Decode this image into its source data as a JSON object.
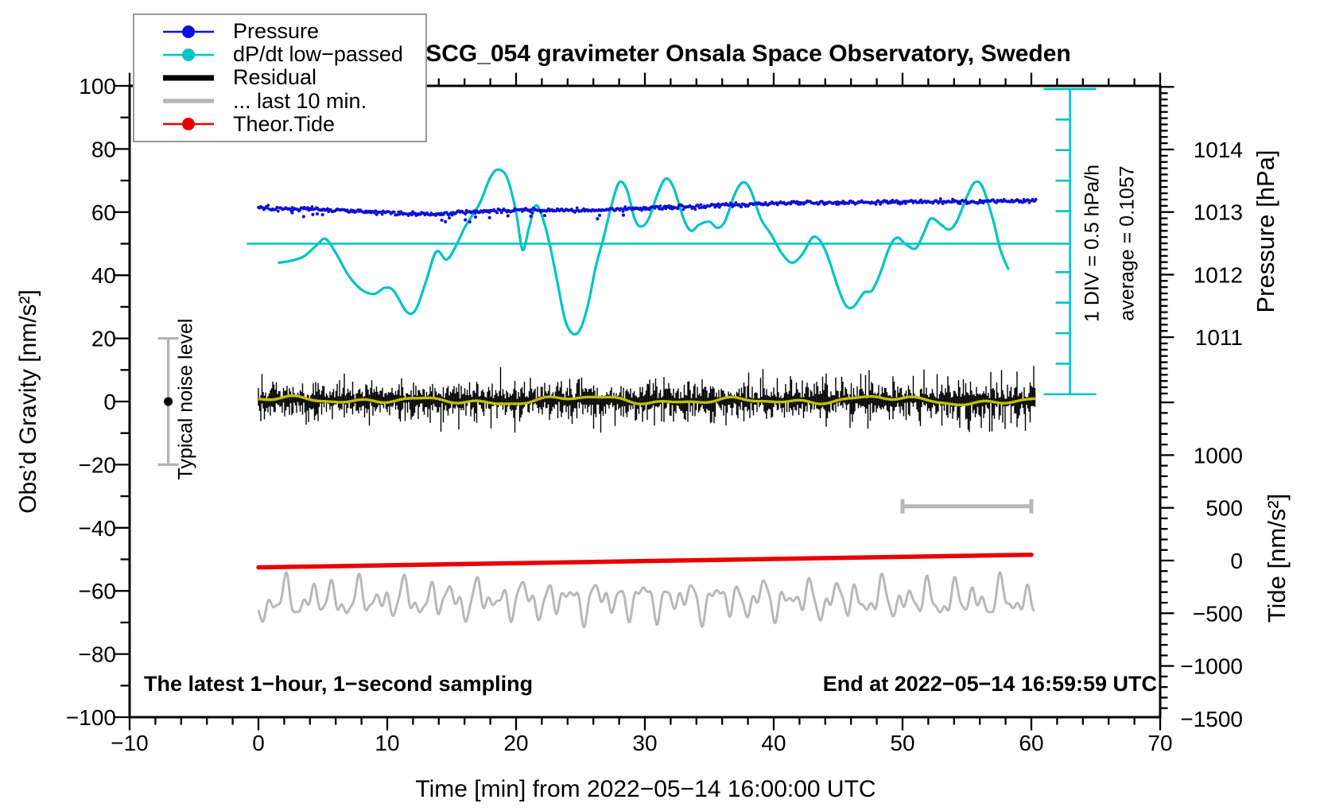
{
  "title": "SCG_054 gravimeter Onsala Space Observatory, Sweden",
  "annotations": {
    "sampling_note": "The latest 1−hour, 1−second sampling",
    "end_note": "End at 2022−05−14 16:59:59 UTC",
    "div_note": "1 DIV = 0.5 hPa/h",
    "average_note": "average = 0.1057",
    "noise_label": "Typical noise level"
  },
  "axes": {
    "x": {
      "label": "Time [min] from 2022−05−14 16:00:00 UTC",
      "min": -10,
      "max": 70,
      "major_ticks": [
        -10,
        0,
        10,
        20,
        30,
        40,
        50,
        60,
        70
      ],
      "minor_step": 2
    },
    "y_left": {
      "label": "Obs’d Gravity [nm/s²]",
      "min": -100,
      "max": 100,
      "major_ticks": [
        100,
        80,
        60,
        40,
        20,
        0,
        -20,
        -40,
        -60,
        -80,
        -100
      ],
      "minor_step": 10
    },
    "y_pressure": {
      "label": "Pressure [hPa]",
      "labeled_ticks": [
        1014,
        1013,
        1012,
        1011
      ],
      "minor_step": 0.1,
      "top_value": 1015.0,
      "bottom_value": 1010.1
    },
    "y_tide": {
      "label": "Tide [nm/s²]",
      "labeled_ticks": [
        1000,
        500,
        0,
        -500,
        -1000,
        -1500
      ],
      "minor_step": 100,
      "top_value": 1500,
      "bottom_value": -1400
    }
  },
  "legend": {
    "items": [
      {
        "label": "Pressure",
        "color": "#0f0fd8",
        "style": "dot-line"
      },
      {
        "label": "dP/dt low−passed",
        "color": "#00c4c4",
        "style": "dot-line"
      },
      {
        "label": "Residual",
        "color": "#000000",
        "style": "thick-line"
      },
      {
        "label": "... last 10 min.",
        "color": "#b8b8b8",
        "style": "line"
      },
      {
        "label": "Theor.Tide",
        "color": "#ea0000",
        "style": "dot-line"
      }
    ]
  },
  "chart_data": {
    "type": "line",
    "x_unit": "minutes",
    "x_range": [
      -10,
      70
    ],
    "series": [
      {
        "name": "Pressure",
        "axis": "pressure_hPa",
        "color": "#0f0fd8",
        "style": "dotted-noisy",
        "points": [
          [
            0,
            1013.06
          ],
          [
            2,
            1013.05
          ],
          [
            4,
            1013.05
          ],
          [
            6,
            1013.03
          ],
          [
            8,
            1013.01
          ],
          [
            10,
            1012.99
          ],
          [
            12,
            1012.97
          ],
          [
            14,
            1012.97
          ],
          [
            16,
            1013.0
          ],
          [
            18,
            1013.02
          ],
          [
            20,
            1013.02
          ],
          [
            22,
            1013.03
          ],
          [
            24,
            1013.03
          ],
          [
            26,
            1013.02
          ],
          [
            28,
            1013.04
          ],
          [
            30,
            1013.06
          ],
          [
            32,
            1013.08
          ],
          [
            34,
            1013.09
          ],
          [
            36,
            1013.11
          ],
          [
            38,
            1013.12
          ],
          [
            40,
            1013.14
          ],
          [
            42,
            1013.15
          ],
          [
            44,
            1013.15
          ],
          [
            46,
            1013.15
          ],
          [
            48,
            1013.16
          ],
          [
            50,
            1013.16
          ],
          [
            52,
            1013.16
          ],
          [
            54,
            1013.17
          ],
          [
            56,
            1013.17
          ],
          [
            58,
            1013.18
          ],
          [
            60,
            1013.18
          ]
        ]
      },
      {
        "name": "dP/dt low−passed",
        "axis": "hPa_per_h",
        "color": "#00c4c4",
        "style": "smooth-line",
        "zero_at_gravity": 50,
        "div_value_hpa_per_h": 0.5,
        "average_hpa_per_h": 0.1057,
        "points": [
          [
            1.6,
            -0.31
          ],
          [
            2.5,
            -0.28
          ],
          [
            3.5,
            -0.21
          ],
          [
            4.5,
            -0.03
          ],
          [
            5.2,
            0.08
          ],
          [
            6,
            -0.15
          ],
          [
            7,
            -0.52
          ],
          [
            8,
            -0.75
          ],
          [
            9,
            -0.82
          ],
          [
            9.8,
            -0.72
          ],
          [
            10.5,
            -0.77
          ],
          [
            11.5,
            -1.11
          ],
          [
            12.2,
            -1.08
          ],
          [
            13,
            -0.62
          ],
          [
            13.8,
            -0.13
          ],
          [
            14.6,
            -0.26
          ],
          [
            15.3,
            -0.05
          ],
          [
            16,
            0.26
          ],
          [
            16.6,
            0.46
          ],
          [
            17.2,
            0.67
          ],
          [
            18,
            1.08
          ],
          [
            18.6,
            1.21
          ],
          [
            19.3,
            1.08
          ],
          [
            20,
            0.52
          ],
          [
            20.5,
            -0.1
          ],
          [
            21,
            0.26
          ],
          [
            21.5,
            0.62
          ],
          [
            22,
            0.46
          ],
          [
            22.6,
            0.0
          ],
          [
            23.2,
            -0.62
          ],
          [
            23.8,
            -1.24
          ],
          [
            24.4,
            -1.47
          ],
          [
            25,
            -1.39
          ],
          [
            25.6,
            -0.98
          ],
          [
            26.2,
            -0.36
          ],
          [
            26.8,
            0.1
          ],
          [
            27.4,
            0.62
          ],
          [
            28,
            1.0
          ],
          [
            28.6,
            0.88
          ],
          [
            29.2,
            0.41
          ],
          [
            29.7,
            0.28
          ],
          [
            30.3,
            0.41
          ],
          [
            31,
            0.82
          ],
          [
            31.6,
            1.06
          ],
          [
            32.2,
            0.93
          ],
          [
            33,
            0.41
          ],
          [
            33.6,
            0.21
          ],
          [
            34.2,
            0.31
          ],
          [
            35,
            0.36
          ],
          [
            35.6,
            0.26
          ],
          [
            36.2,
            0.36
          ],
          [
            37,
            0.82
          ],
          [
            37.6,
            1.0
          ],
          [
            38.2,
            0.88
          ],
          [
            39,
            0.41
          ],
          [
            39.8,
            0.15
          ],
          [
            40.6,
            -0.15
          ],
          [
            41.4,
            -0.31
          ],
          [
            42.2,
            -0.18
          ],
          [
            43,
            0.1
          ],
          [
            43.6,
            0.05
          ],
          [
            44.2,
            -0.21
          ],
          [
            45,
            -0.72
          ],
          [
            45.6,
            -1.01
          ],
          [
            46.2,
            -1.03
          ],
          [
            47,
            -0.8
          ],
          [
            47.6,
            -0.77
          ],
          [
            48.2,
            -0.52
          ],
          [
            49,
            -0.05
          ],
          [
            49.6,
            0.1
          ],
          [
            50.2,
            0.0
          ],
          [
            51,
            -0.08
          ],
          [
            51.6,
            0.15
          ],
          [
            52.2,
            0.41
          ],
          [
            53,
            0.31
          ],
          [
            53.6,
            0.23
          ],
          [
            54.2,
            0.36
          ],
          [
            55,
            0.77
          ],
          [
            55.6,
            1.0
          ],
          [
            56.2,
            0.93
          ],
          [
            57,
            0.41
          ],
          [
            57.6,
            -0.1
          ],
          [
            58.2,
            -0.41
          ]
        ]
      },
      {
        "name": "Residual",
        "axis": "gravity_nm_s2",
        "color": "#000000",
        "style": "noise-band",
        "baseline": 0.35,
        "sigma": 2.9,
        "spike_amp": 10,
        "t_range": [
          0,
          60.3
        ]
      },
      {
        "name": "Residual smoothed",
        "axis": "gravity_nm_s2",
        "color": "#bfbf00",
        "style": "smooth-line",
        "baseline": 0.35,
        "amp": 1.3,
        "t_range": [
          0,
          60.3
        ]
      },
      {
        "name": "... last 10 min.",
        "axis": "gravity_nm_s2",
        "color": "#b8b8b8",
        "style": "wiggle-line",
        "baseline": -62.8,
        "amp": 9,
        "t_range": [
          0,
          60.3
        ]
      },
      {
        "name": "Theor.Tide",
        "axis": "tide_nm_s2",
        "color": "#ea0000",
        "style": "smooth-line",
        "points": [
          [
            0,
            -65
          ],
          [
            10,
            -45
          ],
          [
            20,
            -25
          ],
          [
            30,
            -5
          ],
          [
            40,
            15
          ],
          [
            50,
            35
          ],
          [
            60,
            55
          ]
        ]
      }
    ],
    "noise_bar": {
      "t": -7,
      "center_gravity": 0,
      "half_range": 20
    },
    "last10_scale_bar": {
      "t_start": 50,
      "t_end": 60,
      "gravity": -33.2
    },
    "dpdt_ruler": {
      "t": 63,
      "gravity_top": 99,
      "gravity_bottom": 2.3,
      "divisions": 10,
      "zero_line_gravity": 50,
      "zero_line_t_start": -0.9
    }
  }
}
